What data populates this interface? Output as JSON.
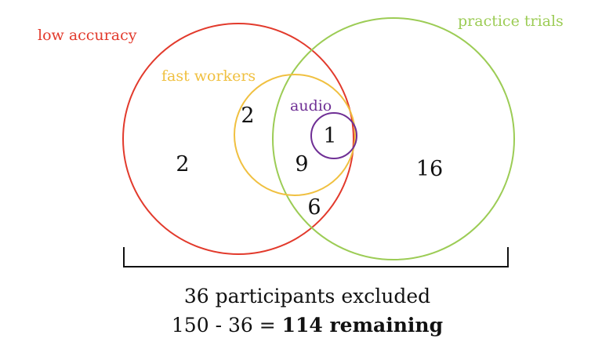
{
  "sets": {
    "low_accuracy": {
      "label": "low accuracy",
      "color": "#e23a2c"
    },
    "practice_trials": {
      "label": "practice trials",
      "color": "#9ccc55"
    },
    "fast_workers": {
      "label": "fast workers",
      "color": "#f0c040"
    },
    "audio": {
      "label": "audio",
      "color": "#6f2f95"
    }
  },
  "counts": {
    "low_accuracy_only": "2",
    "fast_and_low_accuracy": "2",
    "audio_all": "1",
    "fast_low_practice": "9",
    "low_and_practice": "6",
    "practice_only": "16"
  },
  "summary": {
    "excluded": "36 participants excluded",
    "equation": "150 - 36 = ",
    "remaining": "114 remaining"
  }
}
